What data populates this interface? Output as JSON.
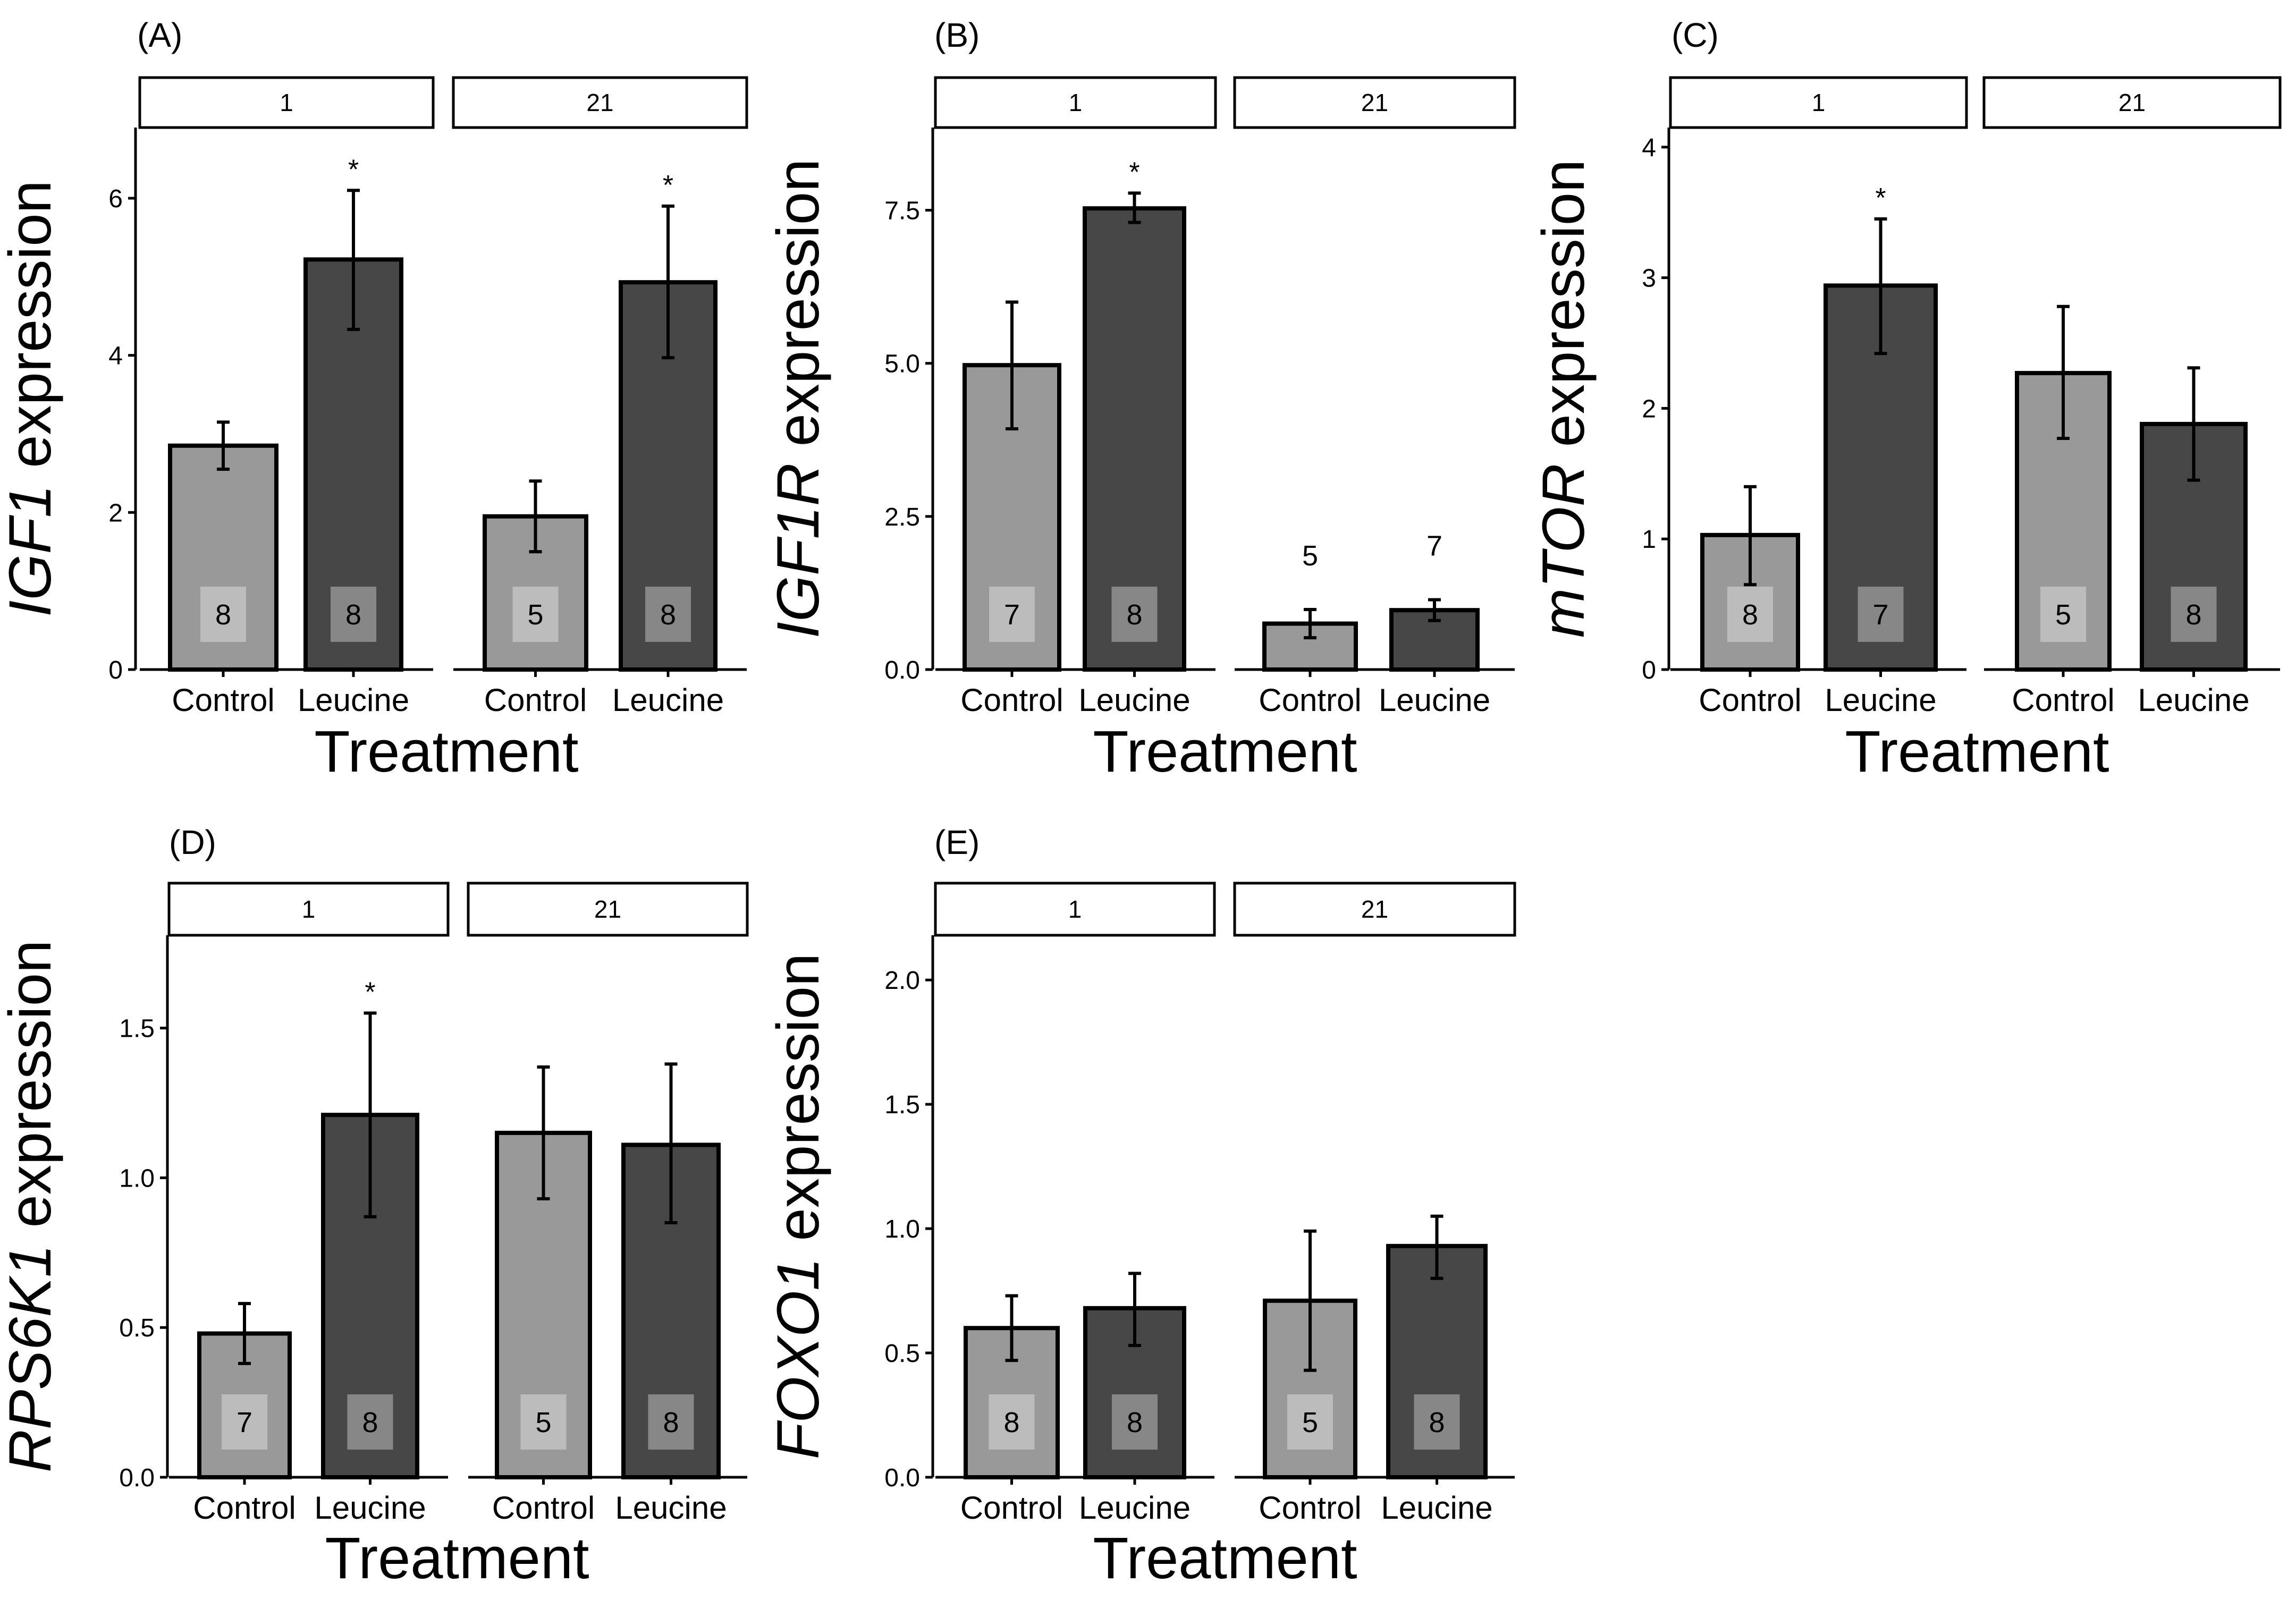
{
  "colors": {
    "control": "#999999",
    "leucine": "#474747",
    "outline": "#000000",
    "strip_fill": "#ffffff",
    "n_box": "#ffffff"
  },
  "chart_data": [
    {
      "type": "bar",
      "panel_label": "(A)",
      "gene": "IGF1",
      "ylabel_suffix": " expression",
      "xlabel": "Treatment",
      "facets": [
        "1",
        "21"
      ],
      "categories": [
        "Control",
        "Leucine"
      ],
      "ylim": [
        0,
        6.9
      ],
      "yticks": [
        0,
        2,
        4,
        6
      ],
      "ytick_labels": [
        "0",
        "2",
        "4",
        "6"
      ],
      "series": [
        {
          "facet": "1",
          "category": "Control",
          "value": 2.85,
          "err_low": 2.55,
          "err_high": 3.15,
          "n": "8",
          "star": ""
        },
        {
          "facet": "1",
          "category": "Leucine",
          "value": 5.22,
          "err_low": 4.33,
          "err_high": 6.1,
          "n": "8",
          "star": "*"
        },
        {
          "facet": "21",
          "category": "Control",
          "value": 1.95,
          "err_low": 1.5,
          "err_high": 2.4,
          "n": "5",
          "star": ""
        },
        {
          "facet": "21",
          "category": "Leucine",
          "value": 4.93,
          "err_low": 3.97,
          "err_high": 5.9,
          "n": "8",
          "star": "*"
        }
      ]
    },
    {
      "type": "bar",
      "panel_label": "(B)",
      "gene": "IGF1R",
      "ylabel_suffix": " expression",
      "xlabel": "Treatment",
      "facets": [
        "1",
        "21"
      ],
      "categories": [
        "Control",
        "Leucine"
      ],
      "ylim": [
        0,
        8.85
      ],
      "yticks": [
        0,
        2.5,
        5,
        7.5
      ],
      "ytick_labels": [
        "0.0",
        "2.5",
        "5.0",
        "7.5"
      ],
      "series": [
        {
          "facet": "1",
          "category": "Control",
          "value": 4.97,
          "err_low": 3.93,
          "err_high": 6.0,
          "n": "7",
          "star": ""
        },
        {
          "facet": "1",
          "category": "Leucine",
          "value": 7.53,
          "err_low": 7.3,
          "err_high": 7.78,
          "n": "8",
          "star": "*"
        },
        {
          "facet": "21",
          "category": "Control",
          "value": 0.75,
          "err_low": 0.52,
          "err_high": 0.98,
          "n": "5",
          "star": ""
        },
        {
          "facet": "21",
          "category": "Leucine",
          "value": 0.97,
          "err_low": 0.8,
          "err_high": 1.14,
          "n": "7",
          "star": ""
        }
      ]
    },
    {
      "type": "bar",
      "panel_label": "(C)",
      "gene": "mTOR",
      "ylabel_suffix": " expression",
      "xlabel": "Treatment",
      "facets": [
        "1",
        "21"
      ],
      "categories": [
        "Control",
        "Leucine"
      ],
      "ylim": [
        0,
        4.15
      ],
      "yticks": [
        0,
        1,
        2,
        3,
        4
      ],
      "ytick_labels": [
        "0",
        "1",
        "2",
        "3",
        "4"
      ],
      "series": [
        {
          "facet": "1",
          "category": "Control",
          "value": 1.03,
          "err_low": 0.65,
          "err_high": 1.4,
          "n": "8",
          "star": ""
        },
        {
          "facet": "1",
          "category": "Leucine",
          "value": 2.94,
          "err_low": 2.42,
          "err_high": 3.45,
          "n": "7",
          "star": "*"
        },
        {
          "facet": "21",
          "category": "Control",
          "value": 2.27,
          "err_low": 1.77,
          "err_high": 2.78,
          "n": "5",
          "star": ""
        },
        {
          "facet": "21",
          "category": "Leucine",
          "value": 1.88,
          "err_low": 1.45,
          "err_high": 2.31,
          "n": "8",
          "star": ""
        }
      ]
    },
    {
      "type": "bar",
      "panel_label": "(D)",
      "gene": "RPS6K1",
      "ylabel_suffix": " expression",
      "xlabel": "Treatment",
      "facets": [
        "1",
        "21"
      ],
      "categories": [
        "Control",
        "Leucine"
      ],
      "ylim": [
        0,
        1.81
      ],
      "yticks": [
        0,
        0.5,
        1,
        1.5
      ],
      "ytick_labels": [
        "0.0",
        "0.5",
        "1.0",
        "1.5"
      ],
      "series": [
        {
          "facet": "1",
          "category": "Control",
          "value": 0.48,
          "err_low": 0.38,
          "err_high": 0.58,
          "n": "7",
          "star": ""
        },
        {
          "facet": "1",
          "category": "Leucine",
          "value": 1.21,
          "err_low": 0.87,
          "err_high": 1.55,
          "n": "8",
          "star": "*"
        },
        {
          "facet": "21",
          "category": "Control",
          "value": 1.15,
          "err_low": 0.93,
          "err_high": 1.37,
          "n": "5",
          "star": ""
        },
        {
          "facet": "21",
          "category": "Leucine",
          "value": 1.11,
          "err_low": 0.85,
          "err_high": 1.38,
          "n": "8",
          "star": ""
        }
      ]
    },
    {
      "type": "bar",
      "panel_label": "(E)",
      "gene": "FOXO1",
      "ylabel_suffix": " expression",
      "xlabel": "Treatment",
      "facets": [
        "1",
        "21"
      ],
      "categories": [
        "Control",
        "Leucine"
      ],
      "ylim": [
        0,
        2.18
      ],
      "yticks": [
        0,
        0.5,
        1,
        1.5,
        2
      ],
      "ytick_labels": [
        "0.0",
        "0.5",
        "1.0",
        "1.5",
        "2.0"
      ],
      "series": [
        {
          "facet": "1",
          "category": "Control",
          "value": 0.6,
          "err_low": 0.47,
          "err_high": 0.73,
          "n": "8",
          "star": ""
        },
        {
          "facet": "1",
          "category": "Leucine",
          "value": 0.68,
          "err_low": 0.53,
          "err_high": 0.82,
          "n": "8",
          "star": ""
        },
        {
          "facet": "21",
          "category": "Control",
          "value": 0.71,
          "err_low": 0.43,
          "err_high": 0.99,
          "n": "5",
          "star": ""
        },
        {
          "facet": "21",
          "category": "Leucine",
          "value": 0.93,
          "err_low": 0.8,
          "err_high": 1.05,
          "n": "8",
          "star": ""
        }
      ]
    }
  ]
}
